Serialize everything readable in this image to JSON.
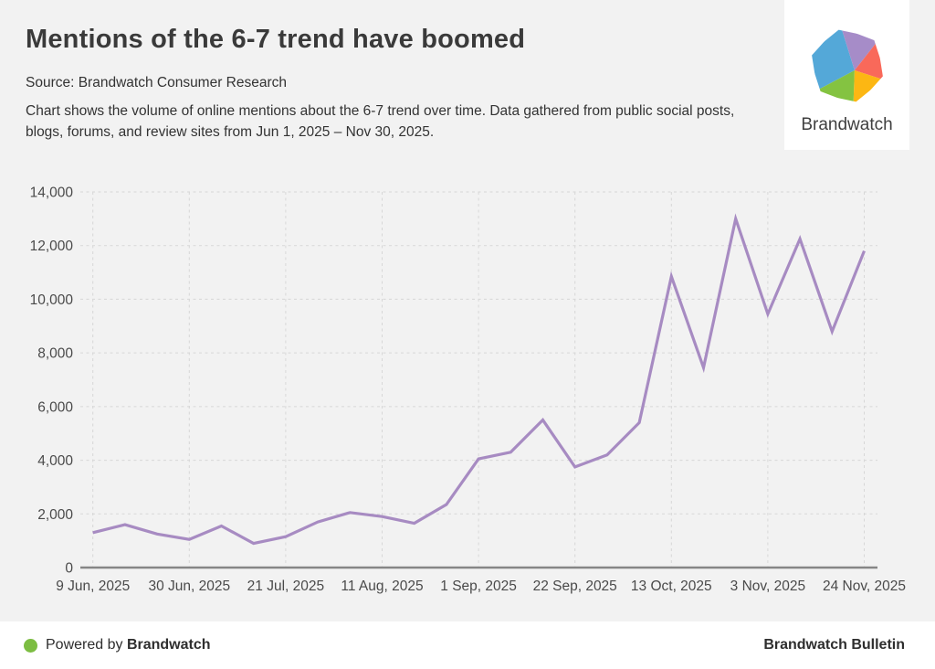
{
  "header": {
    "title": "Mentions of the 6-7 trend have boomed",
    "source": "Source: Brandwatch Consumer Research",
    "description": "Chart shows the volume of online mentions about the 6-7 trend over time. Data gathered from public social posts, blogs, forums, and review sites from Jun 1, 2025 – Nov 30, 2025."
  },
  "logo": {
    "label": "Brandwatch",
    "colors": {
      "blue": "#54a8d8",
      "purple": "#a68cc8",
      "coral": "#f9695a",
      "yellow": "#fcb713",
      "green": "#84c341"
    }
  },
  "chart_data": {
    "type": "line",
    "title": "Mentions of the 6-7 trend have boomed",
    "xlabel": "",
    "ylabel": "",
    "x_tick_labels": [
      "9 Jun, 2025",
      "30 Jun, 2025",
      "21 Jul, 2025",
      "11 Aug, 2025",
      "1 Sep, 2025",
      "22 Sep, 2025",
      "13 Oct, 2025",
      "3 Nov, 2025",
      "24 Nov, 2025"
    ],
    "points_per_tick": 3,
    "series": [
      {
        "name": "mentions",
        "values": [
          1300,
          1600,
          1250,
          1050,
          1550,
          900,
          1150,
          1700,
          2050,
          1900,
          1650,
          2350,
          4050,
          4300,
          5500,
          3750,
          4200,
          5400,
          10850,
          7450,
          13000,
          9450,
          12250,
          8800,
          11800
        ]
      }
    ],
    "y_ticks": [
      0,
      2000,
      4000,
      6000,
      8000,
      10000,
      12000,
      14000
    ],
    "y_tick_labels": [
      "0",
      "2,000",
      "4,000",
      "6,000",
      "8,000",
      "10,000",
      "12,000",
      "14,000"
    ],
    "ylim": [
      0,
      14000
    ],
    "grid": "dashed",
    "legend": "none",
    "line_color": "#a78bc2",
    "axis_color": "#868686",
    "grid_color": "#d7d7d7",
    "label_color": "#4a4a4a"
  },
  "footer": {
    "powered_by_prefix": "Powered by",
    "powered_by_brand": "Brandwatch",
    "right_text": "Brandwatch Bulletin",
    "dot_color": "#7cbd42"
  }
}
